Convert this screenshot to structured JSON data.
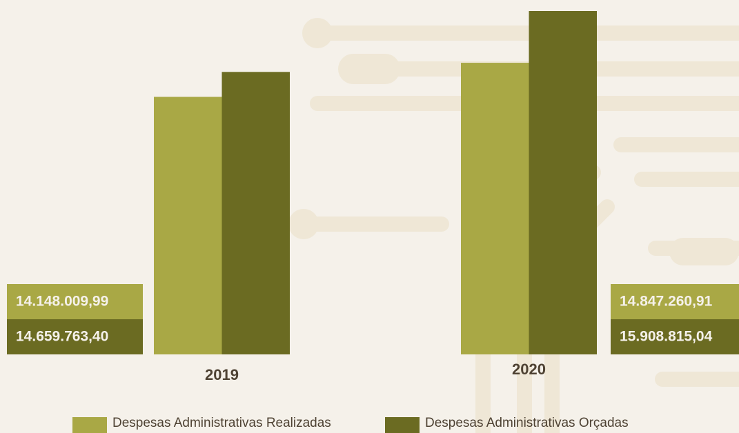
{
  "chart_data": {
    "type": "bar",
    "categories": [
      "2019",
      "2020"
    ],
    "series": [
      {
        "name": "Despesas Administrativas Realizadas",
        "color": "#a9a845",
        "values": [
          14148009.99,
          14847260.91
        ],
        "value_labels": [
          "14.148.009,99",
          "14.847.260,91"
        ]
      },
      {
        "name": "Despesas Administrativas Orçadas",
        "color": "#6b6b22",
        "values": [
          14659763.4,
          15908815.04
        ],
        "value_labels": [
          "14.659.763,40",
          "15.908.815,04"
        ]
      }
    ]
  }
}
